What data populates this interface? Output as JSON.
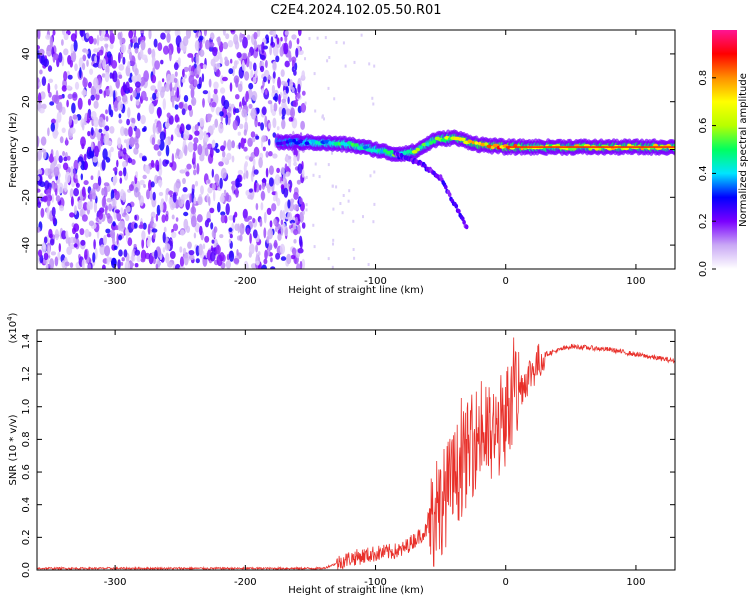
{
  "page": {
    "title": "C2E4.2024.102.05.50.R01"
  },
  "colors": {
    "snr_line": "#e8302a",
    "ridge": "#2ecc40",
    "frame": "#000000"
  },
  "colorbar": {
    "label": "Normalized spectral amplitude",
    "ticks": [
      "0.0",
      "0.2",
      "0.4",
      "0.6",
      "0.8"
    ],
    "tick_values": [
      0.0,
      0.2,
      0.4,
      0.6,
      0.8
    ],
    "range": [
      0,
      1
    ],
    "colormap": [
      "#ffffff",
      "#c9a8f5",
      "#7a00ff",
      "#0000ff",
      "#00e5ff",
      "#00ff60",
      "#b8ff00",
      "#ffff00",
      "#ff9000",
      "#ff0000",
      "#ff1493"
    ]
  },
  "chart_data": [
    {
      "type": "heatmap",
      "title": "C2E4.2024.102.05.50.R01",
      "xlabel": "Height of straight line (km)",
      "ylabel": "Frequency (Hz)",
      "xlim": [
        -360,
        130
      ],
      "ylim": [
        -50,
        50
      ],
      "x_ticks": [
        -300,
        -200,
        -100,
        0,
        100
      ],
      "x_tick_labels": [
        "-300",
        "-200",
        "-100",
        "0",
        "100"
      ],
      "y_ticks": [
        -40,
        -20,
        0,
        20,
        40
      ],
      "y_tick_labels": [
        "-40",
        "-20",
        "0",
        "20",
        "40"
      ],
      "noise_region_x": [
        -360,
        -155
      ],
      "ridge": {
        "x": [
          -175,
          -150,
          -120,
          -100,
          -85,
          -70,
          -55,
          -40,
          -20,
          0,
          20,
          60,
          100,
          130
        ],
        "freq": [
          3,
          3,
          2,
          0,
          -2,
          -1,
          4,
          5,
          2,
          1,
          1,
          1,
          1,
          1
        ],
        "amplitude": [
          0.25,
          0.4,
          0.55,
          0.45,
          0.55,
          0.6,
          0.6,
          0.7,
          0.85,
          0.9,
          0.7,
          0.75,
          0.8,
          0.7
        ]
      },
      "branch": {
        "x": [
          -85,
          -65,
          -50,
          -40,
          -30
        ],
        "freq": [
          -2,
          -6,
          -12,
          -22,
          -33
        ]
      }
    },
    {
      "type": "line",
      "xlabel": "Height of straight line (km)",
      "ylabel": "SNR (10 * v/v)",
      "y_multiplier": "(x10",
      "y_multiplier_exp": "4",
      "y_multiplier_close": ")",
      "xlim": [
        -360,
        130
      ],
      "ylim": [
        0,
        1.47
      ],
      "x_ticks": [
        -300,
        -200,
        -100,
        0,
        100
      ],
      "x_tick_labels": [
        "-300",
        "-200",
        "-100",
        "0",
        "100"
      ],
      "y_ticks": [
        0.0,
        0.2,
        0.4,
        0.6,
        0.8,
        1.0,
        1.2,
        1.4
      ],
      "y_tick_labels": [
        "0.0",
        "0.2",
        "0.4",
        "0.6",
        "0.8",
        "1.0",
        "1.2",
        "1.4"
      ],
      "series": [
        {
          "x": [
            -360,
            -300,
            -200,
            -140,
            -120,
            -100,
            -80,
            -60,
            -50,
            -40,
            -30,
            -20,
            -10,
            0,
            10,
            20,
            30,
            50,
            80,
            100,
            130
          ],
          "y": [
            0.01,
            0.01,
            0.01,
            0.01,
            0.07,
            0.1,
            0.12,
            0.25,
            0.4,
            0.55,
            0.7,
            0.85,
            0.8,
            0.95,
            1.1,
            1.22,
            1.32,
            1.37,
            1.35,
            1.32,
            1.28
          ]
        }
      ]
    }
  ]
}
